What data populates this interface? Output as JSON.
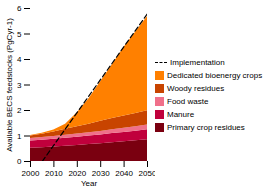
{
  "chart_data": {
    "type": "area",
    "stacked": true,
    "xlabel": "Year",
    "ylabel": "Available BECS feedstocks (PgCyr-1)",
    "x": [
      2000,
      2005,
      2010,
      2015,
      2020,
      2025,
      2030,
      2035,
      2040,
      2045,
      2050
    ],
    "xlim": [
      2000,
      2050
    ],
    "xticks": [
      2000,
      2010,
      2020,
      2030,
      2040,
      2050
    ],
    "ylim": [
      0,
      6
    ],
    "yticks": [
      0,
      1,
      2,
      3,
      4,
      5,
      6
    ],
    "grid": false,
    "legend": "right",
    "series": [
      {
        "name": "Primary crop residues",
        "color": "#7a0010",
        "values": [
          0.52,
          0.54,
          0.57,
          0.6,
          0.63,
          0.67,
          0.7,
          0.74,
          0.77,
          0.81,
          0.85
        ]
      },
      {
        "name": "Manure",
        "color": "#c0003c",
        "values": [
          0.28,
          0.29,
          0.3,
          0.31,
          0.32,
          0.33,
          0.34,
          0.36,
          0.37,
          0.38,
          0.4
        ]
      },
      {
        "name": "Food waste",
        "color": "#f0708a",
        "values": [
          0.1,
          0.11,
          0.11,
          0.12,
          0.13,
          0.13,
          0.14,
          0.15,
          0.16,
          0.17,
          0.18
        ]
      },
      {
        "name": "Woody residues",
        "color": "#c84400",
        "values": [
          0.1,
          0.13,
          0.18,
          0.23,
          0.28,
          0.33,
          0.4,
          0.44,
          0.48,
          0.52,
          0.56
        ]
      },
      {
        "name": "Dedicated bioenergy crops",
        "color": "#ff8000",
        "values": [
          0.02,
          0.04,
          0.08,
          0.2,
          0.55,
          1.0,
          1.55,
          2.1,
          2.7,
          3.2,
          3.7
        ]
      },
      {
        "name": "Implementation",
        "type": "line",
        "line_style": "dashed",
        "color": "black",
        "x": [
          2005,
          2050
        ],
        "values": [
          0.0,
          5.8
        ]
      }
    ]
  }
}
